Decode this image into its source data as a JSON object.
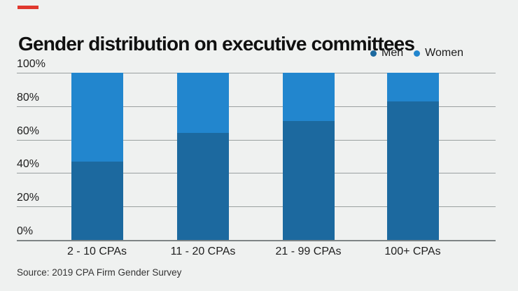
{
  "title": "Gender distribution on executive committees",
  "source": "Source: 2019 CPA Firm Gender Survey",
  "colors": {
    "background": "#eff1f0",
    "accent_red": "#e0382e",
    "men_blue": "#1c699f",
    "women_blue": "#2286ce",
    "gridline": "#9aa0a0",
    "axis": "#7e8485",
    "title_text": "#101010",
    "label_text": "#1e1e1e"
  },
  "legend": {
    "items": [
      {
        "label": "Men",
        "color": "#1c699f"
      },
      {
        "label": "Women",
        "color": "#2286ce"
      }
    ]
  },
  "chart_data": {
    "type": "bar",
    "stacked": true,
    "title": "Gender distribution on executive committees",
    "source": "Source: 2019 CPA Firm Gender Survey",
    "categories": [
      "2 - 10 CPAs",
      "11 - 20 CPAs",
      "21 - 99 CPAs",
      "100+ CPAs"
    ],
    "series": [
      {
        "name": "Men",
        "color": "#1c699f",
        "values": [
          47,
          64,
          71,
          83
        ]
      },
      {
        "name": "Women",
        "color": "#2286ce",
        "values": [
          53,
          36,
          29,
          17
        ]
      }
    ],
    "xlabel": "",
    "ylabel": "",
    "ylim": [
      0,
      100
    ],
    "yticks": [
      "0%",
      "20%",
      "40%",
      "60%",
      "80%",
      "100%"
    ],
    "grid": true,
    "legend_position": "top-right"
  }
}
